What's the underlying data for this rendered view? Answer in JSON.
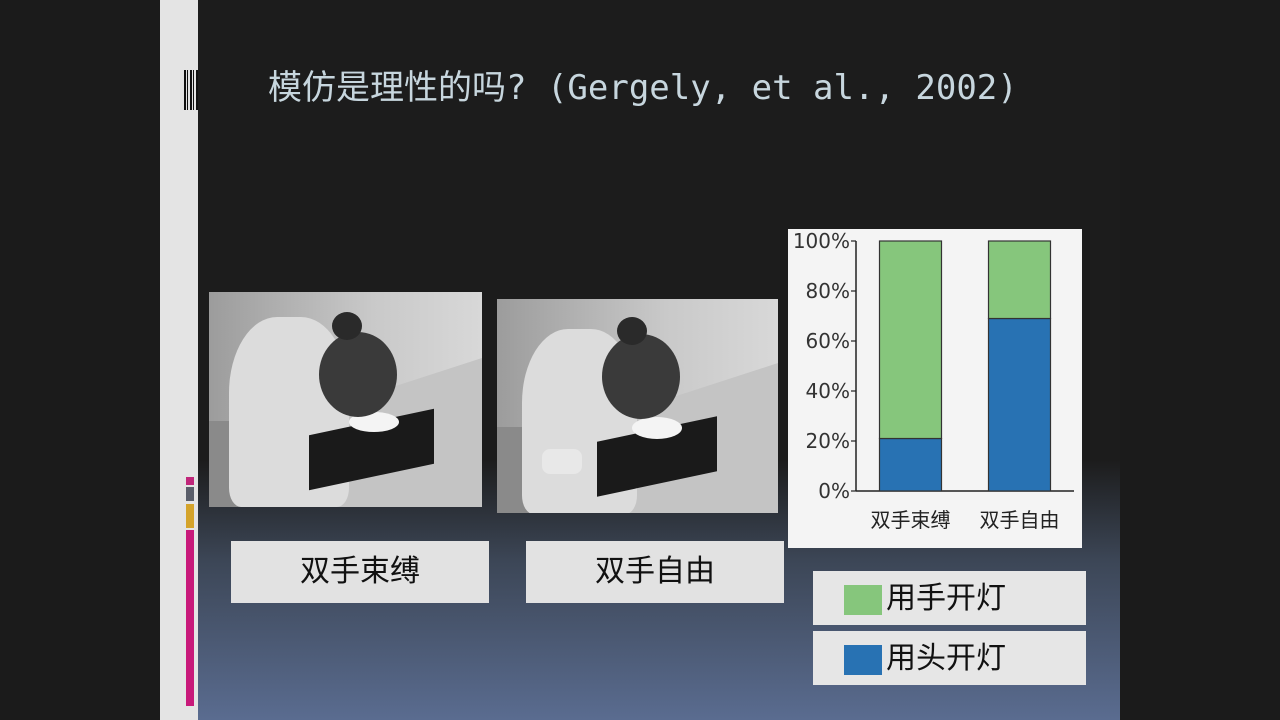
{
  "slide": {
    "title": "模仿是理性的吗? (Gergely, et al., 2002)"
  },
  "photos": [
    {
      "caption": "双手束缚"
    },
    {
      "caption": "双手自由"
    }
  ],
  "chart_data": {
    "type": "bar",
    "stacked": true,
    "categories": [
      "双手束缚",
      "双手自由"
    ],
    "series": [
      {
        "name": "用头开灯",
        "values": [
          21,
          69
        ],
        "color": "#2872b3"
      },
      {
        "name": "用手开灯",
        "values": [
          79,
          31
        ],
        "color": "#86c67c"
      }
    ],
    "yticks": [
      "0%",
      "20%",
      "40%",
      "60%",
      "80%",
      "100%"
    ],
    "ylim": [
      0,
      100
    ],
    "legend_position": "bottom-right",
    "grid": false
  },
  "legend": [
    {
      "label": "用手开灯",
      "color": "#86c67c"
    },
    {
      "label": "用头开灯",
      "color": "#2872b3"
    }
  ]
}
